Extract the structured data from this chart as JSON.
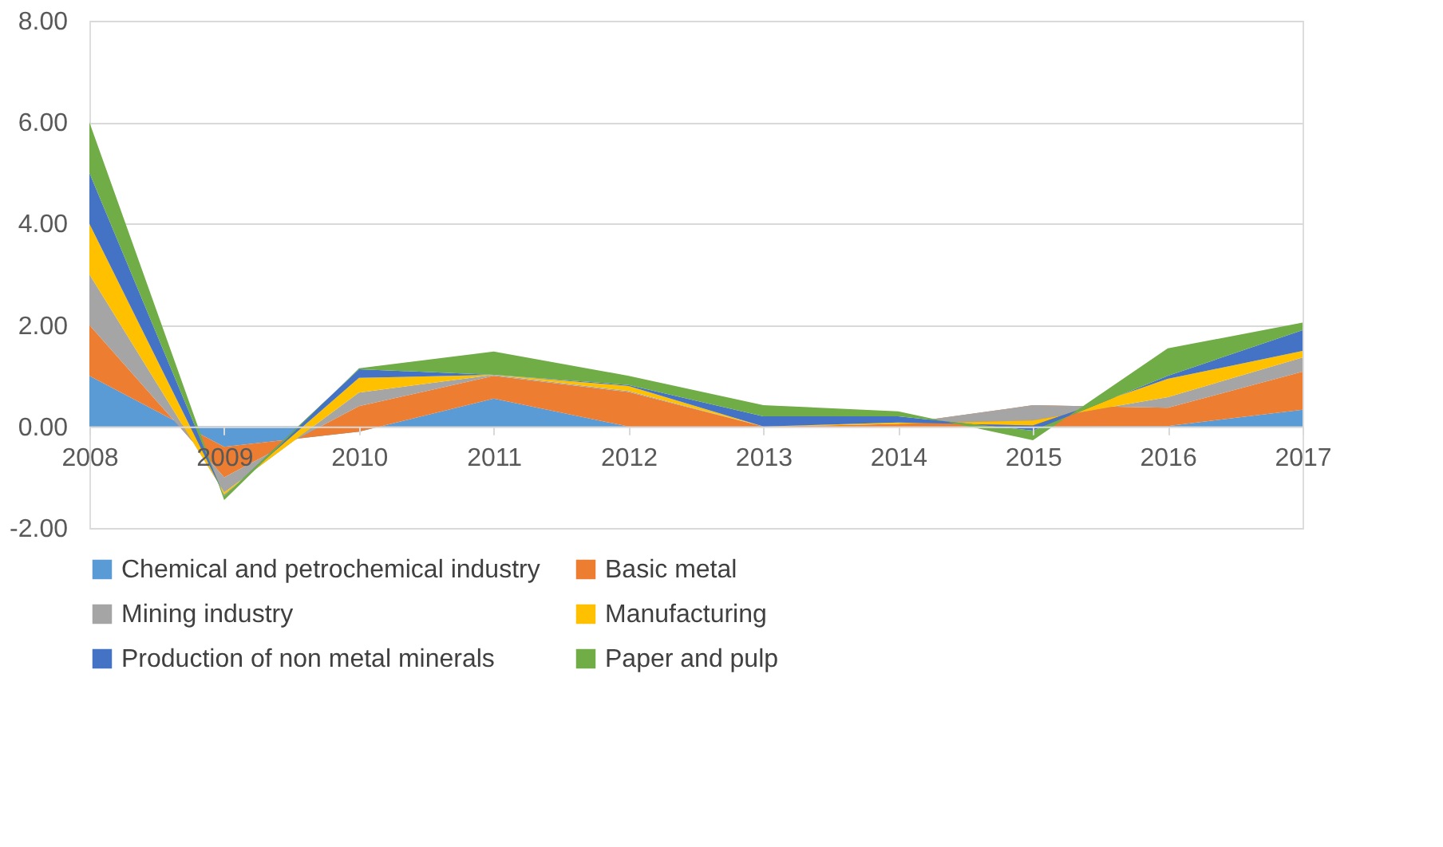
{
  "chart_data": {
    "type": "area",
    "stacked": true,
    "categories": [
      "2008",
      "2009",
      "2010",
      "2011",
      "2012",
      "2013",
      "2014",
      "2015",
      "2016",
      "2017"
    ],
    "series": [
      {
        "name": "Chemical and petrochemical industry",
        "color": "#5b9bd5",
        "values": [
          1.0,
          -0.4,
          -0.1,
          0.55,
          0.0,
          0.0,
          0.0,
          0.0,
          0.01,
          0.33
        ]
      },
      {
        "name": "Basic metal",
        "color": "#ed7d31",
        "values": [
          1.0,
          -0.6,
          0.5,
          0.45,
          0.68,
          0.0,
          0.05,
          0.42,
          0.36,
          0.75
        ]
      },
      {
        "name": "Mining industry",
        "color": "#a5a5a5",
        "values": [
          1.0,
          -0.3,
          0.27,
          0.02,
          0.02,
          0.0,
          0.0,
          -0.3,
          0.21,
          0.28
        ]
      },
      {
        "name": "Manufacturing",
        "color": "#ffc000",
        "values": [
          1.0,
          -0.05,
          0.29,
          0.0,
          0.1,
          0.0,
          0.03,
          -0.1,
          0.36,
          0.13
        ]
      },
      {
        "name": "Production of non metal minerals",
        "color": "#4472c4",
        "values": [
          1.0,
          -0.02,
          0.17,
          0.0,
          0.02,
          0.2,
          0.12,
          -0.1,
          0.06,
          0.41
        ]
      },
      {
        "name": "Paper and pulp",
        "color": "#70ad47",
        "values": [
          1.0,
          -0.08,
          0.02,
          0.46,
          0.18,
          0.22,
          0.1,
          -0.19,
          0.54,
          0.15
        ]
      }
    ],
    "ylim": [
      -2,
      8
    ],
    "yticks": [
      {
        "value": -2,
        "label": "-2.00"
      },
      {
        "value": 0,
        "label": "0.00"
      },
      {
        "value": 2,
        "label": "2.00"
      },
      {
        "value": 4,
        "label": "4.00"
      },
      {
        "value": 6,
        "label": "6.00"
      },
      {
        "value": 8,
        "label": "8.00"
      }
    ],
    "grid": "y",
    "legend": "bottom"
  }
}
